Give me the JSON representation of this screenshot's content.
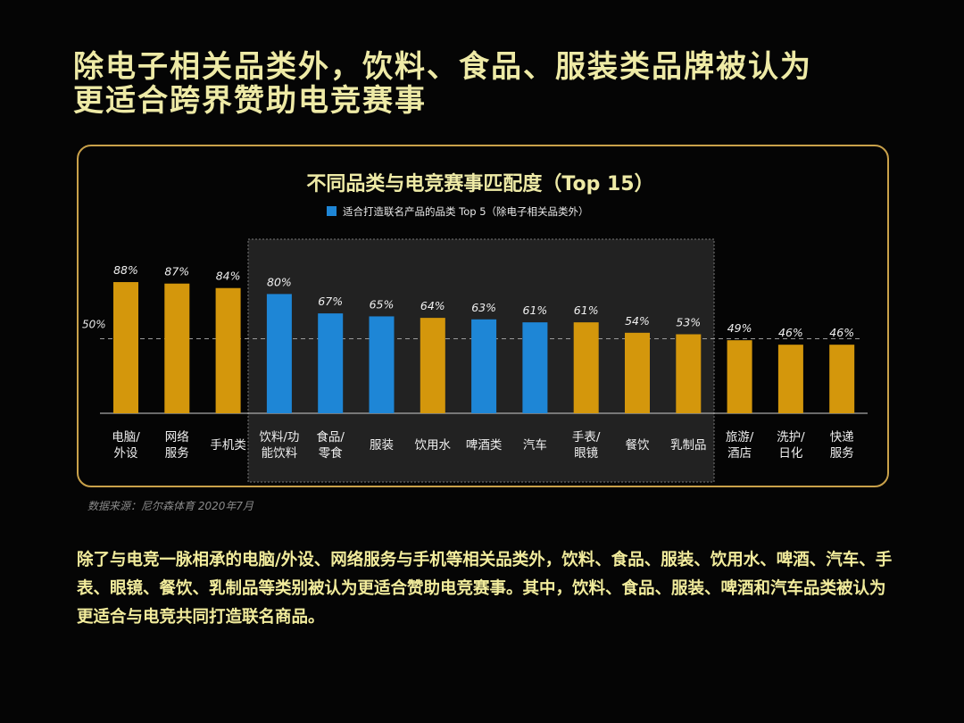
{
  "title_lines": [
    "除电子相关品类外，饮料、食品、服装类品牌被认为",
    "更适合跨界赞助电竞赛事"
  ],
  "source": "数据来源：尼尔森体育 2020年7月",
  "body_text": "除了与电竞一脉相承的电脑/外设、网络服务与手机等相关品类外，饮料、食品、服装、饮用水、啤酒、汽车、手表、眼镜、餐饮、乳制品等类别被认为更适合赞助电竞赛事。其中，饮料、食品、服装、啤酒和汽车品类被认为更适合与电竞共同打造联名商品。",
  "colors": {
    "gold": "#D4970C",
    "blue": "#1E86D6",
    "title": "#EEEAA6",
    "border": "#C9A14A"
  },
  "chart_data": {
    "type": "bar",
    "title": "不同品类与电竞赛事匹配度（Top 15）",
    "legend": [
      {
        "label": "适合打造联名产品的品类 Top 5（除电子相关品类外）",
        "color": "#1E86D6"
      }
    ],
    "legend_placement": "top",
    "categories": [
      "电脑/\n外设",
      "网络\n服务",
      "手机类",
      "饮料/功\n能饮料",
      "食品/\n零食",
      "服装",
      "饮用水",
      "啤酒类",
      "汽车",
      "手表/\n眼镜",
      "餐饮",
      "乳制品",
      "旅游/\n酒店",
      "洗护/\n日化",
      "快递\n服务"
    ],
    "values": [
      88,
      87,
      84,
      80,
      67,
      65,
      64,
      63,
      61,
      61,
      54,
      53,
      49,
      46,
      46
    ],
    "value_labels": [
      "88%",
      "87%",
      "84%",
      "80%",
      "67%",
      "65%",
      "64%",
      "63%",
      "61%",
      "61%",
      "54%",
      "53%",
      "49%",
      "46%",
      "46%"
    ],
    "highlighted": [
      false,
      false,
      false,
      true,
      true,
      true,
      false,
      true,
      true,
      false,
      false,
      false,
      false,
      false,
      false
    ],
    "highlight_region": [
      "饮料/功能饮料",
      "乳制品"
    ],
    "reference_line": {
      "value": 50,
      "label": "50%"
    },
    "ylim": [
      0,
      100
    ],
    "grid": false
  }
}
